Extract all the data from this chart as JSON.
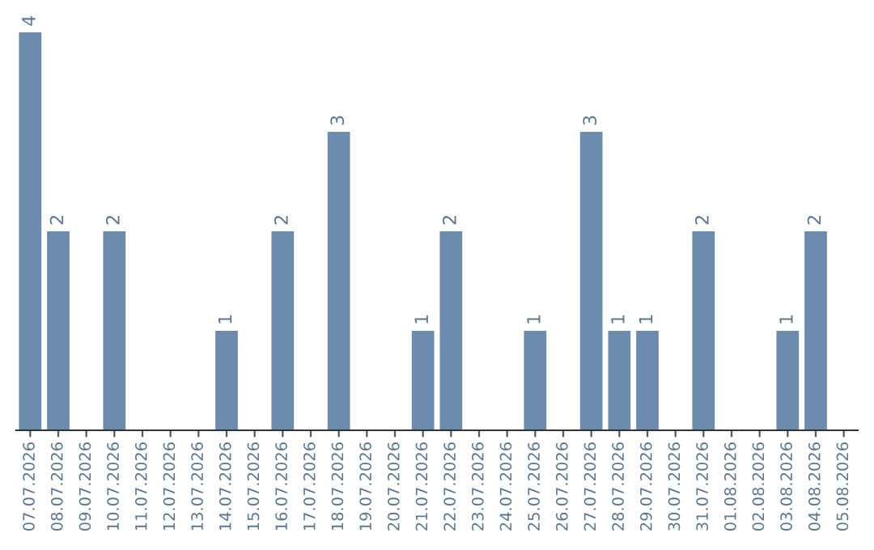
{
  "chart_data": {
    "type": "bar",
    "categories": [
      "07.07.2026",
      "08.07.2026",
      "09.07.2026",
      "10.07.2026",
      "11.07.2026",
      "12.07.2026",
      "13.07.2026",
      "14.07.2026",
      "15.07.2026",
      "16.07.2026",
      "17.07.2026",
      "18.07.2026",
      "19.07.2026",
      "20.07.2026",
      "21.07.2026",
      "22.07.2026",
      "23.07.2026",
      "24.07.2026",
      "25.07.2026",
      "26.07.2026",
      "27.07.2026",
      "28.07.2026",
      "29.07.2026",
      "30.07.2026",
      "31.07.2026",
      "01.08.2026",
      "02.08.2026",
      "03.08.2026",
      "04.08.2026",
      "05.08.2026"
    ],
    "values": [
      4,
      2,
      0,
      2,
      0,
      0,
      0,
      1,
      0,
      2,
      0,
      3,
      0,
      0,
      1,
      2,
      0,
      0,
      1,
      0,
      3,
      1,
      1,
      0,
      2,
      0,
      0,
      1,
      2,
      0
    ],
    "value_labels": [
      "4",
      "2",
      null,
      "2",
      null,
      null,
      null,
      "1",
      null,
      "2",
      null,
      "3",
      null,
      null,
      "1",
      "2",
      null,
      null,
      "1",
      null,
      "3",
      "1",
      "1",
      null,
      "2",
      null,
      null,
      "1",
      "2",
      null
    ],
    "color": "#6b8cae",
    "ylim": [
      0,
      4
    ],
    "tick_labels": "x",
    "grid": false,
    "legend": false
  }
}
